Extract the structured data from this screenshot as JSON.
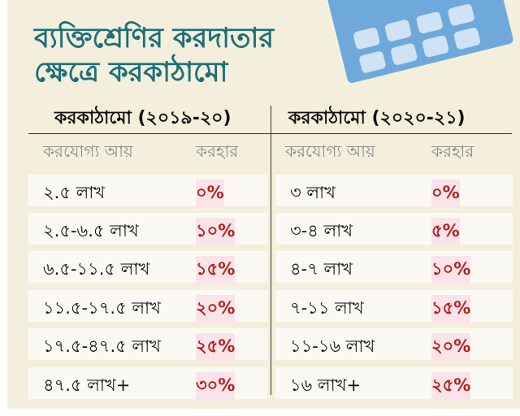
{
  "title": {
    "line1": "ব্যক্তিশ্রেণির করদাতার",
    "line2": "ক্ষেত্রে করকাঠামো"
  },
  "colors": {
    "title": "#1d6f78",
    "rate": "#b0231e",
    "background": "#f4efdc",
    "illustration": "#6fa9dc"
  },
  "illustration": "calculator-icon",
  "tables": [
    {
      "heading": "করকাঠামো (২০১৯-২০)",
      "col_income": "করযোগ্য আয়",
      "col_rate": "করহার",
      "rows": [
        {
          "income": "২.৫ লাখ",
          "rate": "০%"
        },
        {
          "income": "২.৫-৬.৫ লাখ",
          "rate": "১০%"
        },
        {
          "income": "৬.৫-১১.৫ লাখ",
          "rate": "১৫%"
        },
        {
          "income": "১১.৫-১৭.৫ লাখ",
          "rate": "২০%"
        },
        {
          "income": "১৭.৫-৪৭.৫ লাখ",
          "rate": "২৫%"
        },
        {
          "income": "৪৭.৫ লাখ+",
          "rate": "৩০%"
        }
      ]
    },
    {
      "heading": "করকাঠামো (২০২০-২১)",
      "col_income": "করযোগ্য আয়",
      "col_rate": "করহার",
      "rows": [
        {
          "income": "৩ লাখ",
          "rate": "০%"
        },
        {
          "income": "৩-৪ লাখ",
          "rate": "৫%"
        },
        {
          "income": "৪-৭ লাখ",
          "rate": "১০%"
        },
        {
          "income": "৭-১১ লাখ",
          "rate": "১৫%"
        },
        {
          "income": "১১-১৬ লাখ",
          "rate": "২০%"
        },
        {
          "income": "১৬ লাখ+",
          "rate": "২৫%"
        }
      ]
    }
  ]
}
